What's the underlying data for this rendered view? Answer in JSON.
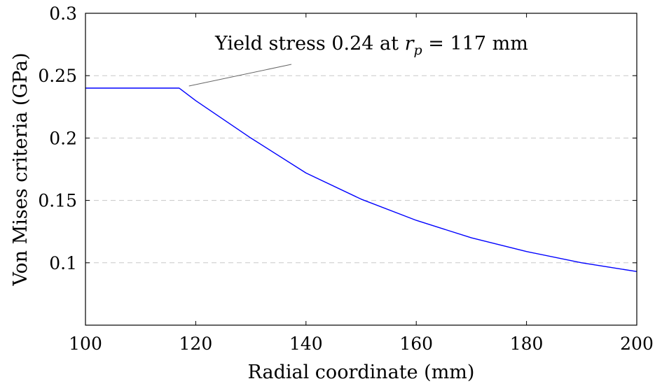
{
  "chart_data": {
    "type": "line",
    "title": "",
    "xlabel": "Radial coordinate (mm)",
    "ylabel": "Von Mises criteria (GPa)",
    "xlim": [
      100,
      200
    ],
    "ylim": [
      0.05,
      0.3
    ],
    "xticks": [
      100,
      120,
      140,
      160,
      180,
      200
    ],
    "xtick_labels": [
      "100",
      "120",
      "140",
      "160",
      "180",
      "200"
    ],
    "yticks": [
      0.1,
      0.15,
      0.2,
      0.25,
      0.3
    ],
    "ytick_labels": [
      "0.1",
      "0.15",
      "0.2",
      "0.25",
      "0.3"
    ],
    "grid": "horizontal dashed",
    "series": [
      {
        "color": "#0000ff",
        "x": [
          100,
          117,
          120,
          130,
          140,
          150,
          160,
          170,
          180,
          190,
          200
        ],
        "y": [
          0.24,
          0.24,
          0.23,
          0.2,
          0.172,
          0.151,
          0.134,
          0.12,
          0.109,
          0.1,
          0.093
        ]
      }
    ],
    "annotation": {
      "text_prefix": "Yield stress 0.24 at ",
      "var": "r",
      "sub": "p",
      "text_suffix": " = 117 mm",
      "point": [
        117.5,
        0.24
      ]
    }
  }
}
